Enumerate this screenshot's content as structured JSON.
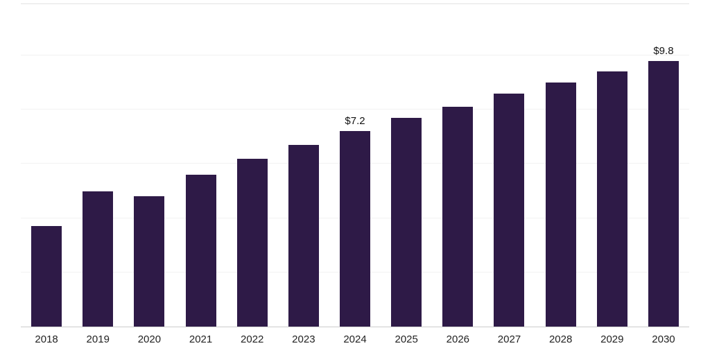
{
  "chart_data": {
    "type": "bar",
    "title": "",
    "xlabel": "",
    "ylabel": "",
    "categories": [
      "2018",
      "2019",
      "2020",
      "2021",
      "2022",
      "2023",
      "2024",
      "2025",
      "2026",
      "2027",
      "2028",
      "2029",
      "2030"
    ],
    "values": [
      3.7,
      5.0,
      4.8,
      5.6,
      6.2,
      6.7,
      7.2,
      7.7,
      8.1,
      8.6,
      9.0,
      9.4,
      9.8
    ],
    "data_labels": [
      "",
      "",
      "",
      "",
      "",
      "",
      "$7.2",
      "",
      "",
      "",
      "",
      "",
      "$9.8"
    ],
    "ylim": [
      0,
      10
    ],
    "gridline_values": [
      2,
      4,
      6,
      8,
      10
    ],
    "grid": "horizontal",
    "legend": "none",
    "bar_color": "#2e1a47",
    "grid_color": "#f2f2f2",
    "axis_color": "#cccccc",
    "label_color": "#111111"
  }
}
